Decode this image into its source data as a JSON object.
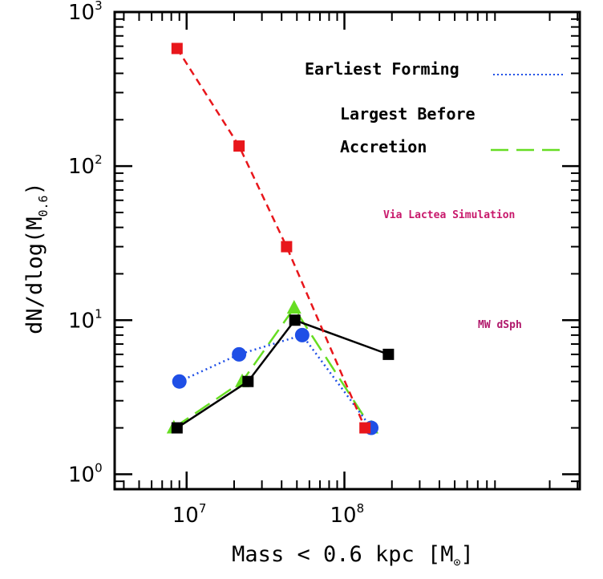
{
  "chart_data": {
    "type": "line",
    "xscale": "log",
    "yscale": "log",
    "xlim": [
      3500000,
      3100000000
    ],
    "ylim": [
      0.8,
      1000
    ],
    "x_ticks": [
      {
        "base": "10",
        "exp": "7",
        "value": 10000000
      },
      {
        "base": "10",
        "exp": "8",
        "value": 100000000
      }
    ],
    "y_ticks": [
      {
        "base": "10",
        "exp": "0",
        "value": 1
      },
      {
        "base": "10",
        "exp": "1",
        "value": 10
      },
      {
        "base": "10",
        "exp": "2",
        "value": 100
      },
      {
        "base": "10",
        "exp": "3",
        "value": 1000
      }
    ],
    "xlabel": {
      "main": "Mass < 0.6 kpc [M",
      "sub": "⊙",
      "close": "]"
    },
    "ylabel": {
      "main": "dN/dlog(M",
      "sub": "0.6",
      "close": ")"
    },
    "series": [
      {
        "name": "Via Lactea Simulation",
        "color": "#e8161b",
        "marker": "square",
        "linestyle": "dashed",
        "x": [
          8700000,
          21500000,
          43000000,
          135000000
        ],
        "y": [
          580,
          135,
          30,
          2
        ]
      },
      {
        "name": "Earliest Forming",
        "color": "#1f4fe6",
        "marker": "circle",
        "linestyle": "dotted",
        "x": [
          9000000,
          21500000,
          54000000,
          148000000
        ],
        "y": [
          4,
          6,
          8,
          2
        ]
      },
      {
        "name": "Largest Before Accretion",
        "color": "#66dd22",
        "marker": "triangle",
        "linestyle": "longdash",
        "x": [
          8300000,
          22500000,
          48000000,
          148000000
        ],
        "y": [
          2,
          4,
          12,
          2
        ]
      },
      {
        "name": "MW dSph",
        "color": "#000000",
        "marker": "square",
        "linestyle": "solid",
        "x": [
          8700000,
          24500000,
          48500000,
          190000000
        ],
        "y": [
          2,
          4,
          10,
          6
        ]
      }
    ],
    "legend": [
      {
        "label": "Earliest Forming",
        "color": "#1f4fe6",
        "linestyle": "dotted"
      },
      {
        "label": "Largest Before",
        "color": "#66dd22",
        "linestyle": "longdash",
        "label_line2": "Accretion"
      }
    ],
    "annotations": [
      {
        "text": "Via Lactea Simulation",
        "color": "#c8186b"
      },
      {
        "text": "MW dSph",
        "color": "#b0186b"
      }
    ]
  }
}
